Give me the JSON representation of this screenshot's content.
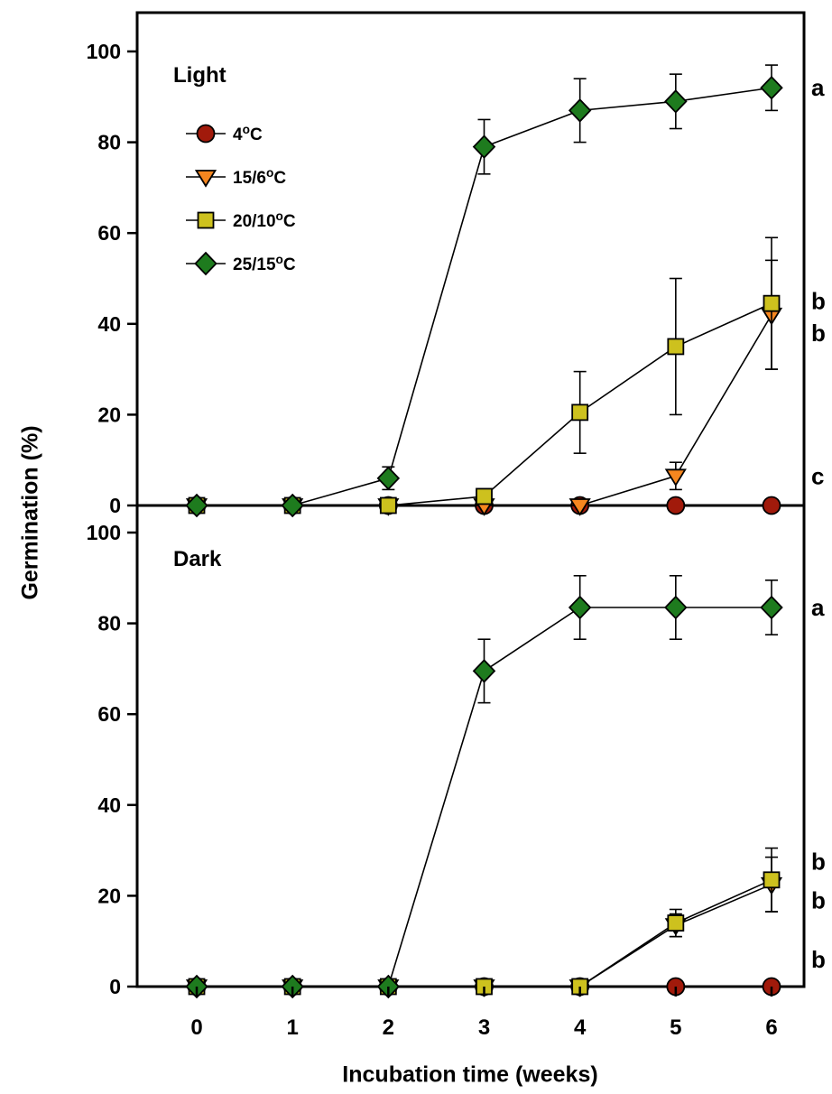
{
  "figure": {
    "ylabel": "Germination (%)",
    "xlabel": "Incubation time (weeks)",
    "xtick_labels": [
      "0",
      "1",
      "2",
      "3",
      "4",
      "5",
      "6"
    ]
  },
  "chart_data": [
    {
      "type": "line",
      "title": "Light",
      "x": [
        0,
        1,
        2,
        3,
        4,
        5,
        6
      ],
      "ylim": [
        0,
        100
      ],
      "yticks": [
        0,
        20,
        40,
        60,
        80,
        100
      ],
      "show_legend": true,
      "legend_position": "upper-left",
      "series": [
        {
          "name": "4°C",
          "marker": "circle",
          "color": "#a11a0b",
          "values": [
            0,
            0,
            0,
            0,
            0,
            0,
            0
          ],
          "errors": [
            0,
            0,
            0,
            0,
            0,
            0,
            0
          ],
          "letter": "c",
          "letter_at": 6.5
        },
        {
          "name": "15/6°C",
          "marker": "triangle-down",
          "color": "#f5861f",
          "values": [
            0,
            0,
            0,
            0,
            0,
            6.5,
            42
          ],
          "errors": [
            0,
            0,
            0,
            0,
            0,
            3,
            12
          ],
          "letter": "b",
          "letter_at": 38
        },
        {
          "name": "20/10°C",
          "marker": "square",
          "color": "#cdc11e",
          "values": [
            0,
            0,
            0,
            2,
            20.5,
            35,
            44.5
          ],
          "errors": [
            0,
            0,
            0,
            1.5,
            9,
            15,
            14.5
          ],
          "letter": "b",
          "letter_at": 45
        },
        {
          "name": "25/15°C",
          "marker": "diamond",
          "color": "#1e7b1e",
          "values": [
            0,
            0,
            6,
            79,
            87,
            89,
            92
          ],
          "errors": [
            0,
            0,
            2.5,
            6,
            7,
            6,
            5
          ],
          "letter": "a",
          "letter_at": 92
        }
      ]
    },
    {
      "type": "line",
      "title": "Dark",
      "x": [
        0,
        1,
        2,
        3,
        4,
        5,
        6
      ],
      "ylim": [
        0,
        100
      ],
      "yticks": [
        0,
        20,
        40,
        60,
        80,
        100
      ],
      "show_legend": false,
      "series": [
        {
          "name": "4°C",
          "marker": "circle",
          "color": "#a11a0b",
          "values": [
            0,
            0,
            0,
            0,
            0,
            0,
            0
          ],
          "errors": [
            0,
            0,
            0,
            0,
            0,
            0,
            0
          ],
          "letter": "b",
          "letter_at": 6
        },
        {
          "name": "15/6°C",
          "marker": "triangle-down",
          "color": "#f5861f",
          "values": [
            0,
            0,
            0,
            0,
            0,
            13.5,
            22.5
          ],
          "errors": [
            0,
            0,
            0,
            0,
            0,
            2.5,
            6
          ],
          "letter": "b",
          "letter_at": 19
        },
        {
          "name": "20/10°C",
          "marker": "square",
          "color": "#cdc11e",
          "values": [
            0,
            0,
            0,
            0,
            0,
            14,
            23.5
          ],
          "errors": [
            0,
            0,
            0,
            0,
            0,
            3,
            7
          ],
          "letter": "b",
          "letter_at": 27.5
        },
        {
          "name": "25/15°C",
          "marker": "diamond",
          "color": "#1e7b1e",
          "values": [
            0,
            0,
            0,
            69.5,
            83.5,
            83.5,
            83.5
          ],
          "errors": [
            0,
            0,
            0,
            7,
            7,
            7,
            6
          ],
          "letter": "a",
          "letter_at": 83.5
        }
      ]
    }
  ]
}
